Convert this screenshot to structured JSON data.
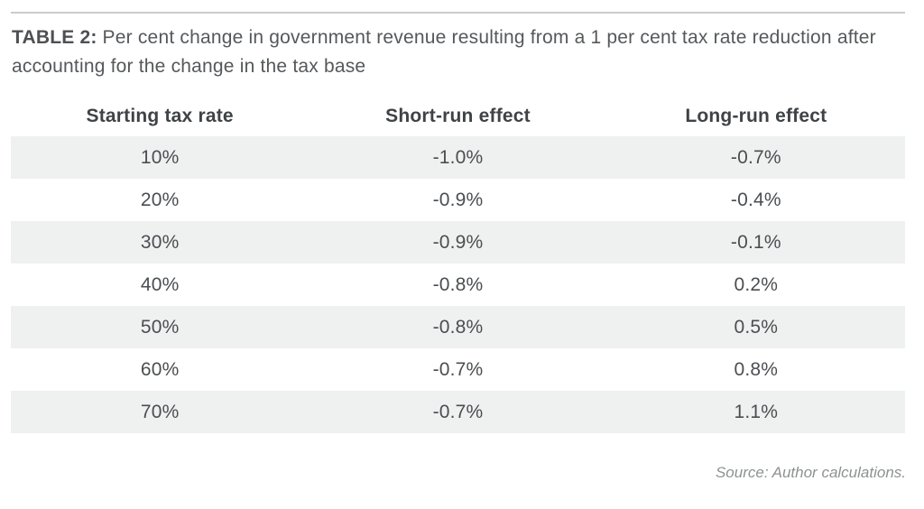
{
  "title": {
    "label": "TABLE 2:",
    "text": "Per cent change in government revenue resulting from a 1 per cent tax rate reduction after accounting for the change in the tax base"
  },
  "table": {
    "columns": [
      "Starting tax rate",
      "Short-run effect",
      "Long-run effect"
    ],
    "rows": [
      [
        "10%",
        "-1.0%",
        "-0.7%"
      ],
      [
        "20%",
        "-0.9%",
        "-0.4%"
      ],
      [
        "30%",
        "-0.9%",
        "-0.1%"
      ],
      [
        "40%",
        "-0.8%",
        "0.2%"
      ],
      [
        "50%",
        "-0.8%",
        "0.5%"
      ],
      [
        "60%",
        "-0.7%",
        "0.8%"
      ],
      [
        "70%",
        "-0.7%",
        "1.1%"
      ]
    ]
  },
  "source": "Source: Author calculations.",
  "colors": {
    "row_shade": "#eff1f0",
    "title_text": "#55585b",
    "header_text": "#3f4346",
    "cell_text": "#4b4e51",
    "source_text": "#8e9192",
    "rule": "#c9cbcc"
  },
  "chart_data": {
    "type": "table",
    "title": "TABLE 2: Per cent change in government revenue resulting from a 1 per cent tax rate reduction after accounting for the change in the tax base",
    "columns": [
      "Starting tax rate",
      "Short-run effect",
      "Long-run effect"
    ],
    "categories": [
      "10%",
      "20%",
      "30%",
      "40%",
      "50%",
      "60%",
      "70%"
    ],
    "series": [
      {
        "name": "Short-run effect",
        "values": [
          -1.0,
          -0.9,
          -0.9,
          -0.8,
          -0.8,
          -0.7,
          -0.7
        ]
      },
      {
        "name": "Long-run effect",
        "values": [
          -0.7,
          -0.4,
          -0.1,
          0.2,
          0.5,
          0.8,
          1.1
        ]
      }
    ],
    "source": "Source: Author calculations."
  }
}
